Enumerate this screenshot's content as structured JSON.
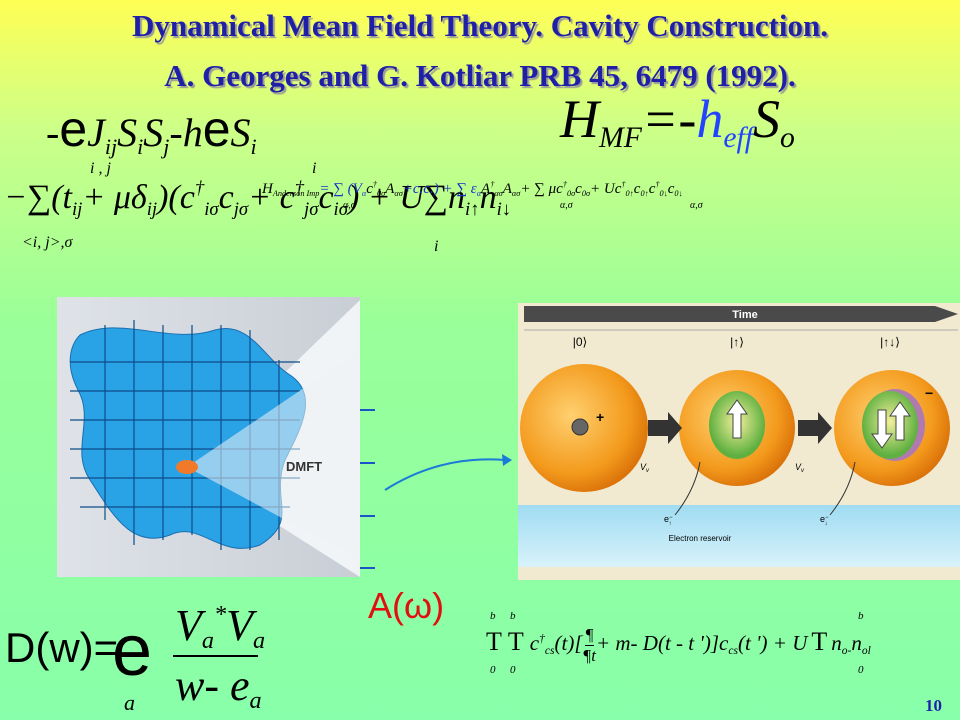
{
  "title": [
    "Dynamical Mean Field Theory. Cavity Construction.",
    "A. Georges and G. Kotliar PRB 45, 6479 (1992)."
  ],
  "heisenberg": {
    "pieces": [
      "-",
      "e",
      "J",
      "ij",
      "S",
      "i",
      "S",
      "j",
      "-",
      "h",
      "e",
      "S",
      "i"
    ],
    "limits": [
      "i , j",
      "i"
    ]
  },
  "mean_field": {
    "pieces": [
      "H",
      "MF",
      "=",
      "-",
      "h",
      "eff",
      "S",
      "o"
    ]
  },
  "hubbard": {
    "pieces": [
      "−",
      "∑",
      "(t",
      "ij",
      "+ μδ",
      "ij",
      ")(c",
      "†",
      "iσ",
      "c",
      "jσ",
      "+ c",
      "†",
      "jσ",
      "c",
      "iσ",
      ") + U",
      "∑",
      "n",
      "i↑",
      "n",
      "i↓"
    ],
    "limits": [
      "<i, j>,σ",
      "i"
    ]
  },
  "anderson": {
    "pieces": [
      "H",
      "Anderson Imp",
      "= ∑ (V",
      "α",
      "c",
      "†",
      "0σ",
      "A",
      "ασ",
      "+c.c.) + ∑ ε",
      "α",
      "A",
      "†",
      "ασ",
      "A",
      "ασ",
      "+ ∑ μc",
      "†",
      "0σ",
      "c",
      "0σ",
      "+ Uc",
      "†",
      "0↑",
      "c",
      "0↑",
      "c",
      "†",
      "0↓",
      "c",
      "0↓"
    ],
    "limits": [
      "α,σ",
      "α,σ",
      "α,σ"
    ]
  },
  "left_figure": {
    "label": "DMFT"
  },
  "right_figure": {
    "time": "Time",
    "states": [
      "|0⟩",
      "|↑⟩",
      "|↑↓⟩"
    ],
    "charges": [
      "+",
      "−"
    ],
    "coupling": [
      "V",
      "v"
    ],
    "electron": [
      "e",
      "−",
      "↑",
      "↓"
    ],
    "reservoir": "Electron reservoir"
  },
  "spectral": "A(ω)",
  "hybridization": {
    "lhs": "D(w)=",
    "sum": "e",
    "sum_index": "a",
    "numerator": [
      "V",
      "a",
      "*",
      "V",
      "a"
    ],
    "denominator": [
      "w- e",
      "a"
    ]
  },
  "action": {
    "pieces": [
      "T",
      "T",
      "c",
      "†",
      "cs",
      "(t)[",
      "¶",
      "¶t",
      "+ m- D(t - t ')]c",
      "cs",
      "(t ') + U",
      "T",
      "n",
      "o-",
      "n",
      "ol"
    ],
    "limits": [
      "b",
      "0",
      "b",
      "0",
      "b",
      "0"
    ]
  },
  "page_number": "10"
}
